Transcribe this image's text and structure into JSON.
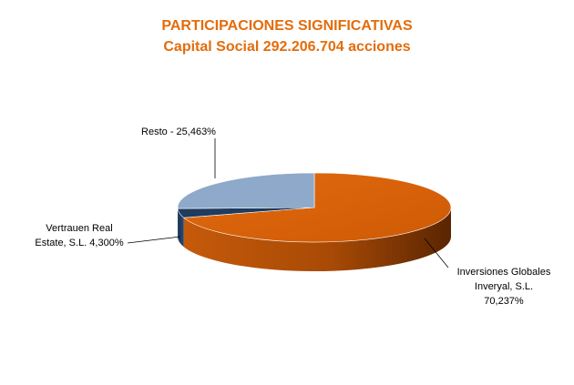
{
  "chart_data": {
    "type": "pie",
    "title": "PARTICIPACIONES SIGNIFICATIVAS",
    "subtitle": "Capital Social 292.206.704 acciones",
    "slices": [
      {
        "name": "Inversiones Globales Inveryal, S.L.",
        "value": 70.237,
        "label_lines": [
          "Inversiones Globales",
          "Inveryal, S.L.",
          "70,237%"
        ],
        "color": "#d9620b",
        "side_color": "#b84f06"
      },
      {
        "name": "Vertrauen Real Estate, S.L.",
        "value": 4.3,
        "label_lines": [
          "Vertrauen Real",
          "Estate, S.L.  4,300%"
        ],
        "color": "#1f3b5e",
        "side_color": "#142a45"
      },
      {
        "name": "Resto",
        "value": 25.463,
        "label_lines": [
          "Resto -  25,463%"
        ],
        "color": "#8ea9c9",
        "side_color": "#6d88a8"
      }
    ],
    "title_color": "#e46c0a",
    "legend": "none"
  }
}
